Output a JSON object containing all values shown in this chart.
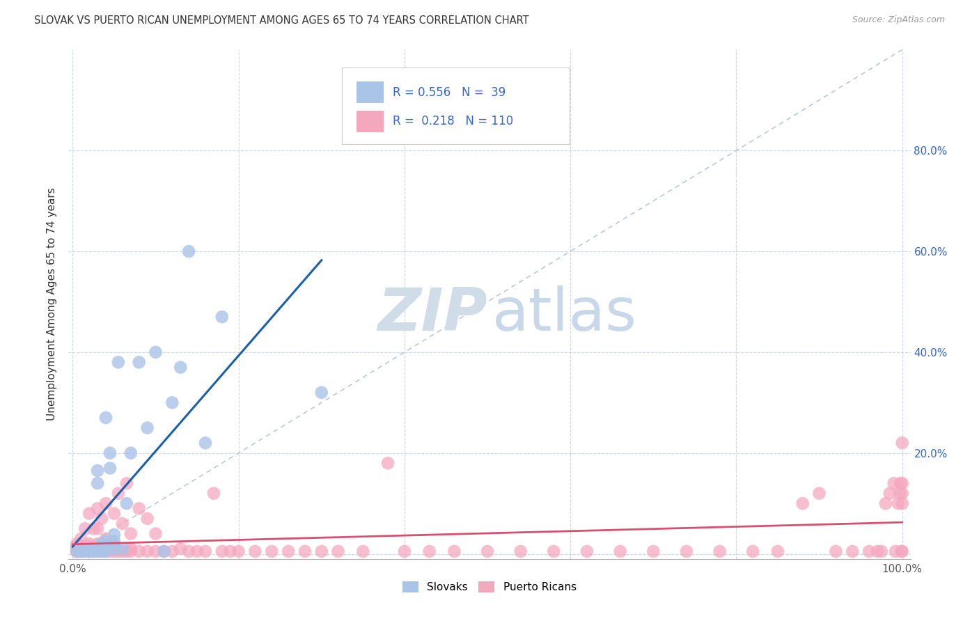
{
  "title": "SLOVAK VS PUERTO RICAN UNEMPLOYMENT AMONG AGES 65 TO 74 YEARS CORRELATION CHART",
  "source": "Source: ZipAtlas.com",
  "ylabel": "Unemployment Among Ages 65 to 74 years",
  "xlim": [
    0,
    1.0
  ],
  "ylim": [
    0,
    1.0
  ],
  "slovak_R": 0.556,
  "slovak_N": 39,
  "puerto_rican_R": 0.218,
  "puerto_rican_N": 110,
  "slovak_color": "#aac4e8",
  "puerto_rican_color": "#f4a8be",
  "slovak_line_color": "#1a5faa",
  "puerto_rican_line_color": "#d85070",
  "diagonal_color": "#b0c0d0",
  "background_color": "#ffffff",
  "watermark_zip_color": "#d0dce8",
  "watermark_atlas_color": "#c8d8e8",
  "legend_text_color": "#3366cc",
  "legend_border_color": "#cccccc",
  "right_tick_color": "#3366cc",
  "bottom_tick_color": "#555555",
  "slovak_x": [
    0.005,
    0.01,
    0.01,
    0.015,
    0.02,
    0.02,
    0.02,
    0.025,
    0.025,
    0.03,
    0.03,
    0.03,
    0.03,
    0.035,
    0.035,
    0.035,
    0.04,
    0.04,
    0.04,
    0.04,
    0.045,
    0.045,
    0.05,
    0.05,
    0.05,
    0.055,
    0.06,
    0.065,
    0.07,
    0.08,
    0.09,
    0.1,
    0.11,
    0.12,
    0.13,
    0.14,
    0.16,
    0.18,
    0.3
  ],
  "slovak_y": [
    0.005,
    0.005,
    0.005,
    0.005,
    0.005,
    0.005,
    0.01,
    0.005,
    0.005,
    0.005,
    0.01,
    0.14,
    0.165,
    0.005,
    0.015,
    0.02,
    0.005,
    0.015,
    0.025,
    0.27,
    0.17,
    0.2,
    0.01,
    0.025,
    0.038,
    0.38,
    0.01,
    0.1,
    0.2,
    0.38,
    0.25,
    0.4,
    0.005,
    0.3,
    0.37,
    0.6,
    0.22,
    0.47,
    0.32
  ],
  "pr_x": [
    0.005,
    0.005,
    0.005,
    0.005,
    0.005,
    0.005,
    0.005,
    0.005,
    0.005,
    0.005,
    0.01,
    0.01,
    0.01,
    0.01,
    0.01,
    0.015,
    0.015,
    0.015,
    0.015,
    0.02,
    0.02,
    0.02,
    0.02,
    0.02,
    0.02,
    0.025,
    0.025,
    0.025,
    0.03,
    0.03,
    0.03,
    0.03,
    0.03,
    0.035,
    0.035,
    0.04,
    0.04,
    0.04,
    0.04,
    0.045,
    0.05,
    0.05,
    0.05,
    0.05,
    0.055,
    0.055,
    0.06,
    0.06,
    0.065,
    0.065,
    0.07,
    0.07,
    0.07,
    0.08,
    0.08,
    0.09,
    0.09,
    0.1,
    0.1,
    0.11,
    0.12,
    0.13,
    0.14,
    0.15,
    0.16,
    0.17,
    0.18,
    0.19,
    0.2,
    0.22,
    0.24,
    0.26,
    0.28,
    0.3,
    0.32,
    0.35,
    0.38,
    0.4,
    0.43,
    0.46,
    0.5,
    0.54,
    0.58,
    0.62,
    0.66,
    0.7,
    0.74,
    0.78,
    0.82,
    0.85,
    0.88,
    0.9,
    0.92,
    0.94,
    0.96,
    0.97,
    0.975,
    0.98,
    0.985,
    0.99,
    0.992,
    0.995,
    0.997,
    0.998,
    0.999,
    1.0,
    1.0,
    1.0,
    1.0,
    1.0
  ],
  "pr_y": [
    0.005,
    0.005,
    0.005,
    0.005,
    0.005,
    0.005,
    0.01,
    0.01,
    0.015,
    0.02,
    0.005,
    0.005,
    0.01,
    0.015,
    0.03,
    0.005,
    0.01,
    0.015,
    0.05,
    0.005,
    0.005,
    0.01,
    0.015,
    0.02,
    0.08,
    0.005,
    0.01,
    0.05,
    0.005,
    0.01,
    0.02,
    0.05,
    0.09,
    0.005,
    0.07,
    0.005,
    0.01,
    0.03,
    0.1,
    0.005,
    0.005,
    0.01,
    0.02,
    0.08,
    0.005,
    0.12,
    0.005,
    0.06,
    0.005,
    0.14,
    0.005,
    0.01,
    0.04,
    0.005,
    0.09,
    0.005,
    0.07,
    0.005,
    0.04,
    0.005,
    0.005,
    0.01,
    0.005,
    0.005,
    0.005,
    0.12,
    0.005,
    0.005,
    0.005,
    0.005,
    0.005,
    0.005,
    0.005,
    0.005,
    0.005,
    0.005,
    0.18,
    0.005,
    0.005,
    0.005,
    0.005,
    0.005,
    0.005,
    0.005,
    0.005,
    0.005,
    0.005,
    0.005,
    0.005,
    0.005,
    0.1,
    0.12,
    0.005,
    0.005,
    0.005,
    0.005,
    0.005,
    0.1,
    0.12,
    0.14,
    0.005,
    0.1,
    0.12,
    0.14,
    0.005,
    0.005,
    0.1,
    0.12,
    0.14,
    0.22
  ]
}
